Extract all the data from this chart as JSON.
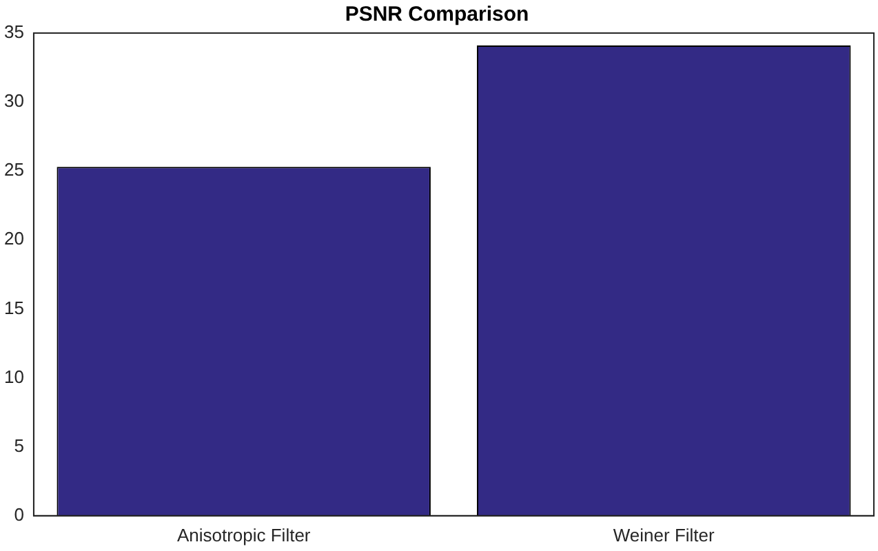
{
  "chart_data": {
    "type": "bar",
    "title": "PSNR Comparison",
    "categories": [
      "Anisotropic Filter",
      "Weiner Filter"
    ],
    "values": [
      25.3,
      34.1
    ],
    "color": "#332a85",
    "ylim": [
      0,
      35
    ],
    "yticks": [
      0,
      5,
      10,
      15,
      20,
      25,
      30,
      35
    ],
    "grid": false,
    "legend": false
  }
}
